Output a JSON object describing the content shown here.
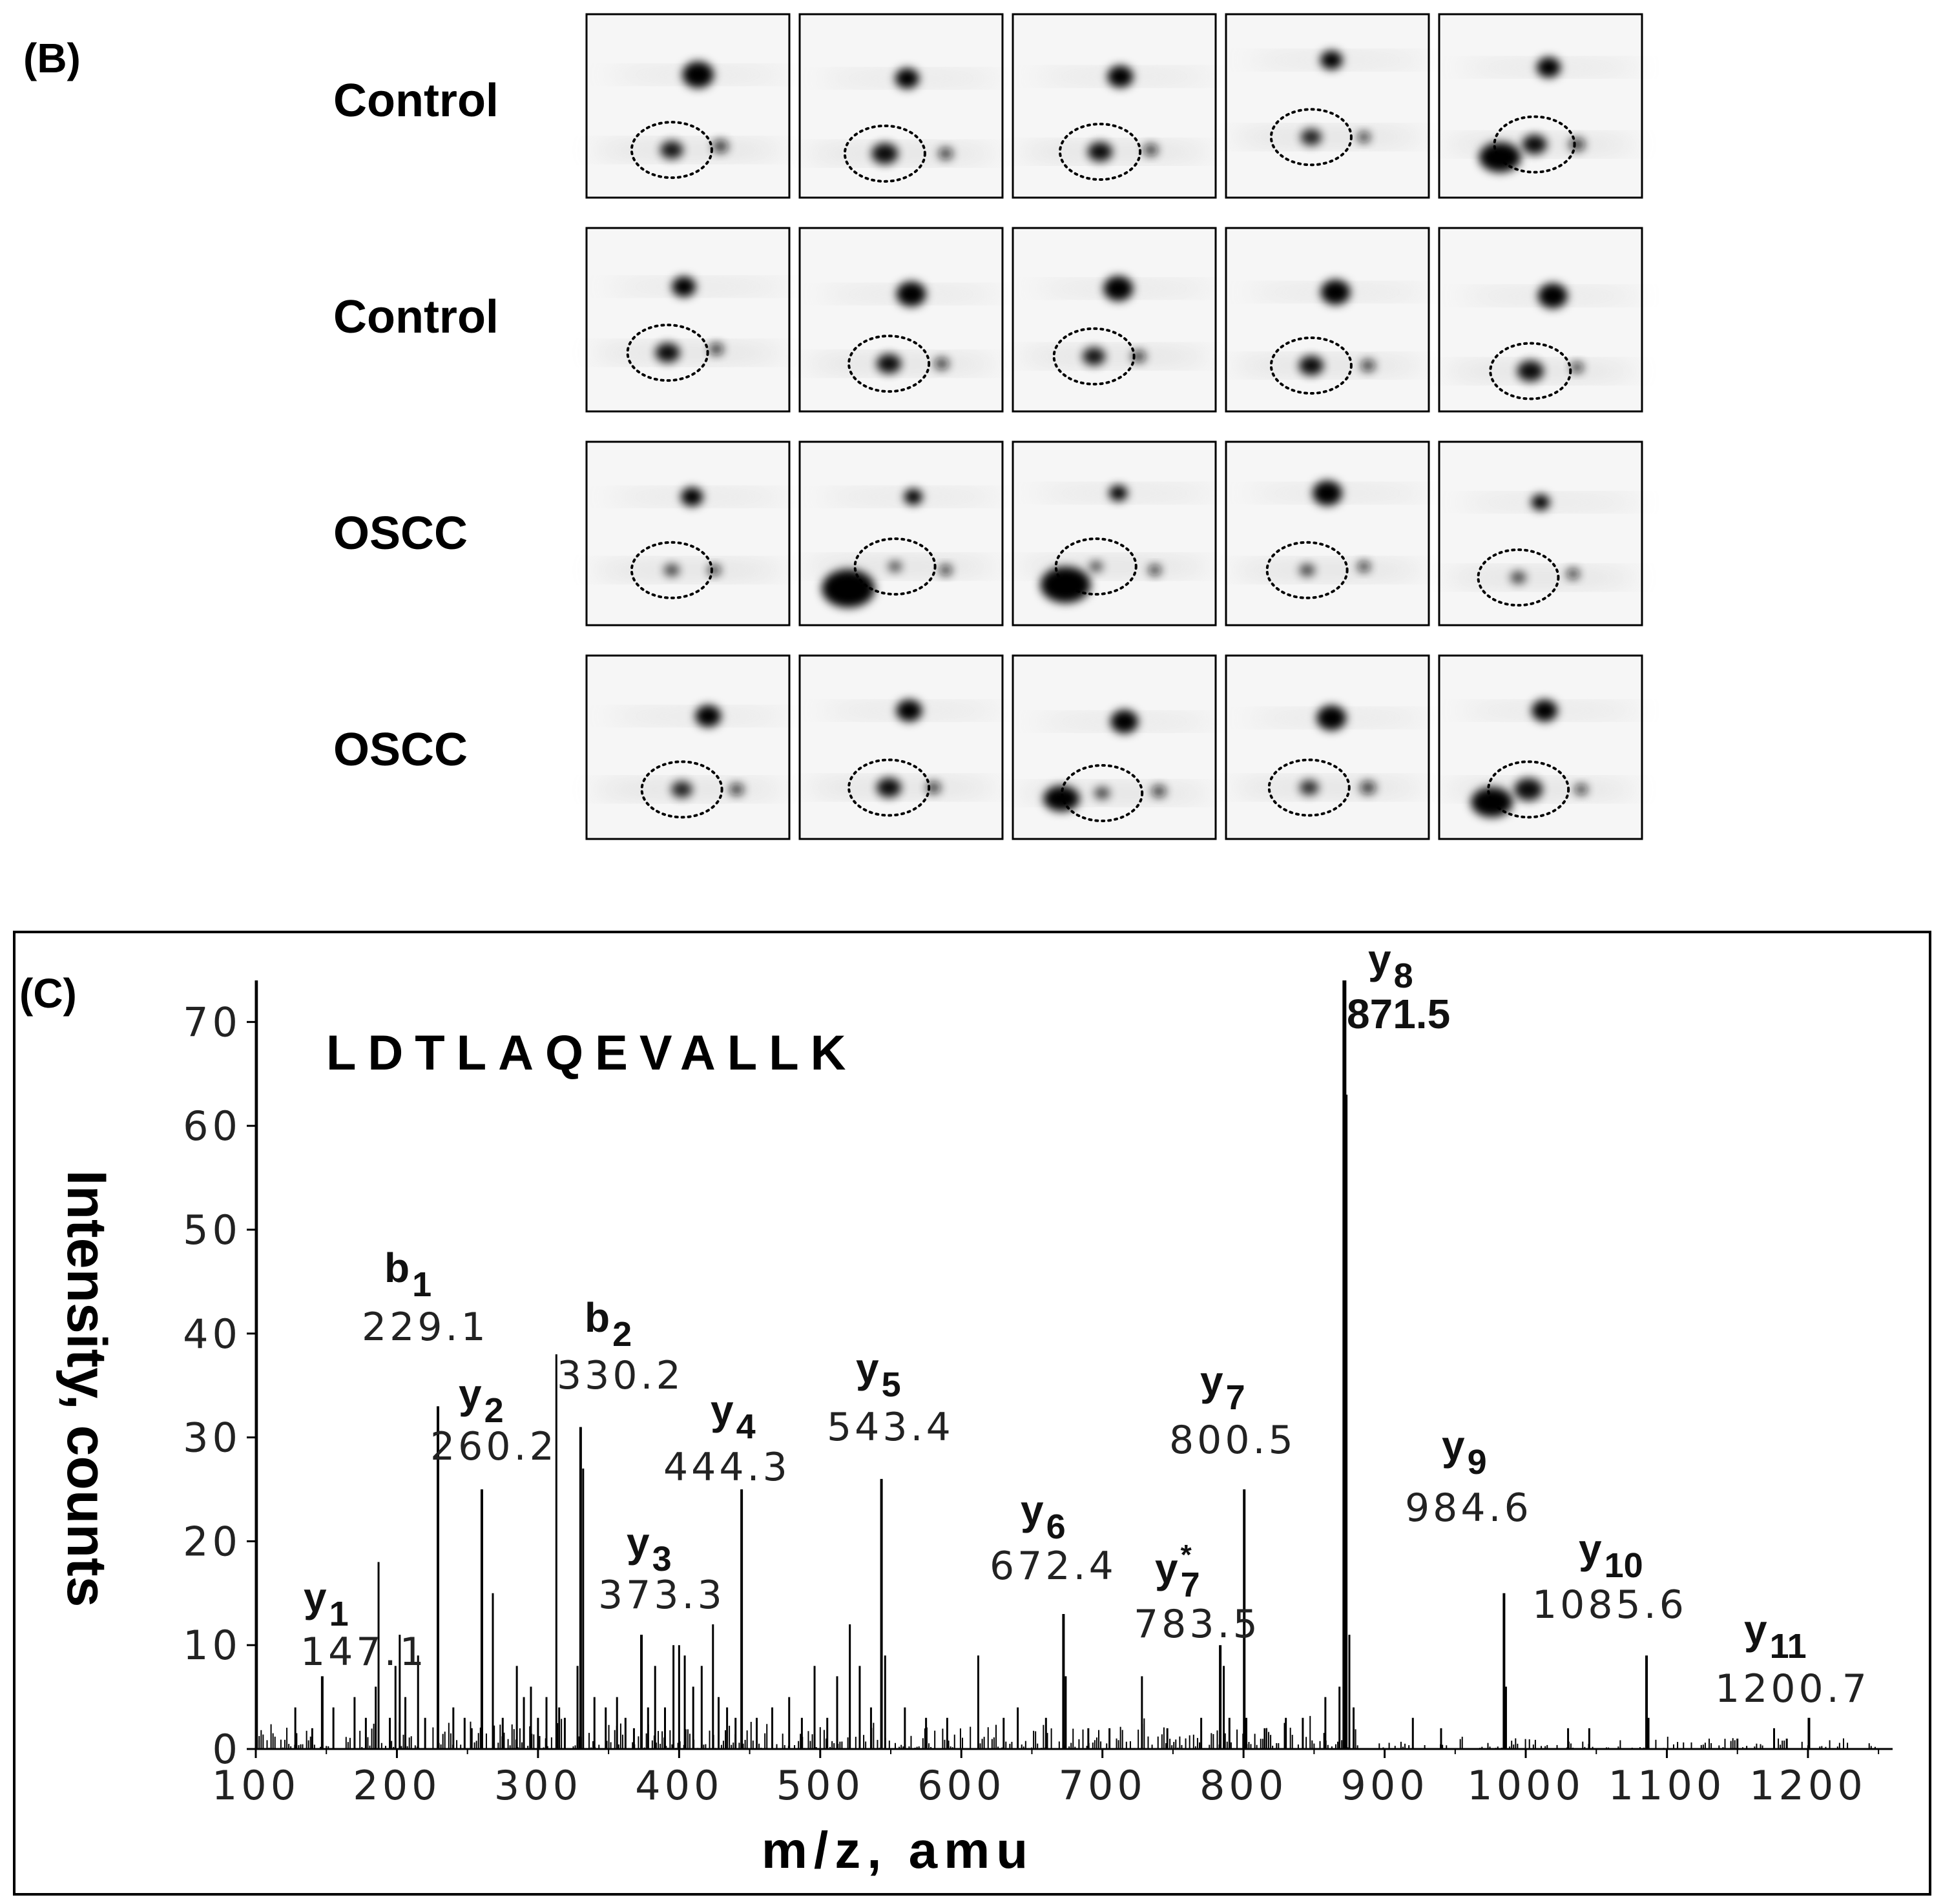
{
  "panel_b": {
    "label": "(B)",
    "row_labels": [
      "Control",
      "Control",
      "OSCC",
      "OSCC"
    ],
    "columns": 5
  },
  "chart_data": {
    "type": "bar",
    "panel_label": "(C)",
    "title": "LDTLAQEVALLK",
    "xlabel": "m/z, amu",
    "ylabel": "Intensity, counts",
    "xlim": [
      100,
      1260
    ],
    "ylim": [
      0,
      74
    ],
    "x_ticks": [
      100,
      200,
      300,
      400,
      500,
      600,
      700,
      800,
      900,
      1000,
      1100,
      1200
    ],
    "y_ticks": [
      0,
      10,
      20,
      30,
      40,
      50,
      60,
      70
    ],
    "annotated_peaks": [
      {
        "ion": "y",
        "sub": "1",
        "sup": "",
        "mz": "147.1",
        "x": 147.1,
        "y": 7
      },
      {
        "ion": "b",
        "sub": "1",
        "sup": "",
        "mz": "229.1",
        "x": 229.1,
        "y": 33
      },
      {
        "ion": "y",
        "sub": "2",
        "sup": "",
        "mz": "260.2",
        "x": 260.2,
        "y": 25
      },
      {
        "ion": "b",
        "sub": "2",
        "sup": "",
        "mz": "330.2",
        "x": 330.2,
        "y": 31
      },
      {
        "ion": "y",
        "sub": "3",
        "sup": "",
        "mz": "373.3",
        "x": 373.3,
        "y": 11
      },
      {
        "ion": "y",
        "sub": "4",
        "sup": "",
        "mz": "444.3",
        "x": 444.3,
        "y": 25
      },
      {
        "ion": "y",
        "sub": "5",
        "sup": "",
        "mz": "543.4",
        "x": 543.4,
        "y": 26
      },
      {
        "ion": "y",
        "sub": "6",
        "sup": "",
        "mz": "672.4",
        "x": 672.4,
        "y": 13
      },
      {
        "ion": "y",
        "sub": "7",
        "sup": "*",
        "mz": "783.5",
        "x": 783.5,
        "y": 10
      },
      {
        "ion": "y",
        "sub": "7",
        "sup": "",
        "mz": "800.5",
        "x": 800.5,
        "y": 25
      },
      {
        "ion": "y",
        "sub": "8",
        "sup": "",
        "mz": "871.5",
        "x": 871.5,
        "y": 74
      },
      {
        "ion": "y",
        "sub": "9",
        "sup": "",
        "mz": "984.6",
        "x": 984.6,
        "y": 15
      },
      {
        "ion": "y",
        "sub": "10",
        "sup": "",
        "mz": "1085.6",
        "x": 1085.6,
        "y": 9
      },
      {
        "ion": "y",
        "sub": "11",
        "sup": "",
        "mz": "1200.7",
        "x": 1200.7,
        "y": 3
      }
    ],
    "other_peaks": [
      {
        "x": 100,
        "y": 37
      },
      {
        "x": 100.8,
        "y": 74
      },
      {
        "x": 128,
        "y": 4
      },
      {
        "x": 140,
        "y": 2
      },
      {
        "x": 155,
        "y": 4
      },
      {
        "x": 170,
        "y": 5
      },
      {
        "x": 178,
        "y": 3
      },
      {
        "x": 185,
        "y": 6
      },
      {
        "x": 187,
        "y": 18
      },
      {
        "x": 195,
        "y": 3
      },
      {
        "x": 199,
        "y": 8
      },
      {
        "x": 202,
        "y": 11
      },
      {
        "x": 206,
        "y": 5
      },
      {
        "x": 215,
        "y": 9
      },
      {
        "x": 220,
        "y": 3
      },
      {
        "x": 240,
        "y": 4
      },
      {
        "x": 248,
        "y": 3
      },
      {
        "x": 253,
        "y": 2
      },
      {
        "x": 268,
        "y": 15
      },
      {
        "x": 275,
        "y": 3
      },
      {
        "x": 285,
        "y": 8
      },
      {
        "x": 290,
        "y": 5
      },
      {
        "x": 295,
        "y": 6
      },
      {
        "x": 300,
        "y": 3
      },
      {
        "x": 306,
        "y": 5
      },
      {
        "x": 313,
        "y": 38
      },
      {
        "x": 315,
        "y": 4
      },
      {
        "x": 319,
        "y": 3
      },
      {
        "x": 328,
        "y": 8
      },
      {
        "x": 332,
        "y": 27
      },
      {
        "x": 340,
        "y": 5
      },
      {
        "x": 348,
        "y": 4
      },
      {
        "x": 356,
        "y": 5
      },
      {
        "x": 362,
        "y": 3
      },
      {
        "x": 368,
        "y": 2
      },
      {
        "x": 378,
        "y": 4
      },
      {
        "x": 383,
        "y": 8
      },
      {
        "x": 390,
        "y": 4
      },
      {
        "x": 396,
        "y": 10
      },
      {
        "x": 400,
        "y": 10
      },
      {
        "x": 404,
        "y": 9
      },
      {
        "x": 410,
        "y": 6
      },
      {
        "x": 416,
        "y": 8
      },
      {
        "x": 424,
        "y": 12
      },
      {
        "x": 428,
        "y": 5
      },
      {
        "x": 434,
        "y": 4
      },
      {
        "x": 440,
        "y": 3
      },
      {
        "x": 455,
        "y": 3
      },
      {
        "x": 466,
        "y": 4
      },
      {
        "x": 478,
        "y": 5
      },
      {
        "x": 487,
        "y": 3
      },
      {
        "x": 496,
        "y": 8
      },
      {
        "x": 505,
        "y": 3
      },
      {
        "x": 512,
        "y": 7
      },
      {
        "x": 521,
        "y": 12
      },
      {
        "x": 528,
        "y": 8
      },
      {
        "x": 536,
        "y": 4
      },
      {
        "x": 546,
        "y": 9
      },
      {
        "x": 560,
        "y": 4
      },
      {
        "x": 575,
        "y": 3
      },
      {
        "x": 590,
        "y": 3
      },
      {
        "x": 612,
        "y": 9
      },
      {
        "x": 630,
        "y": 3
      },
      {
        "x": 640,
        "y": 4
      },
      {
        "x": 660,
        "y": 3
      },
      {
        "x": 674,
        "y": 7
      },
      {
        "x": 690,
        "y": 2
      },
      {
        "x": 705,
        "y": 2
      },
      {
        "x": 728,
        "y": 7
      },
      {
        "x": 746,
        "y": 2
      },
      {
        "x": 770,
        "y": 3
      },
      {
        "x": 786,
        "y": 8
      },
      {
        "x": 790,
        "y": 3
      },
      {
        "x": 802,
        "y": 3
      },
      {
        "x": 815,
        "y": 2
      },
      {
        "x": 830,
        "y": 3
      },
      {
        "x": 842,
        "y": 3
      },
      {
        "x": 858,
        "y": 5
      },
      {
        "x": 868,
        "y": 6
      },
      {
        "x": 873,
        "y": 63
      },
      {
        "x": 875,
        "y": 11
      },
      {
        "x": 878,
        "y": 4
      },
      {
        "x": 920,
        "y": 3
      },
      {
        "x": 940,
        "y": 2
      },
      {
        "x": 986,
        "y": 6
      },
      {
        "x": 1030,
        "y": 2
      },
      {
        "x": 1045,
        "y": 2
      },
      {
        "x": 1087,
        "y": 3
      },
      {
        "x": 1150,
        "y": 1
      },
      {
        "x": 1176,
        "y": 2
      },
      {
        "x": 1185,
        "y": 1
      }
    ]
  }
}
